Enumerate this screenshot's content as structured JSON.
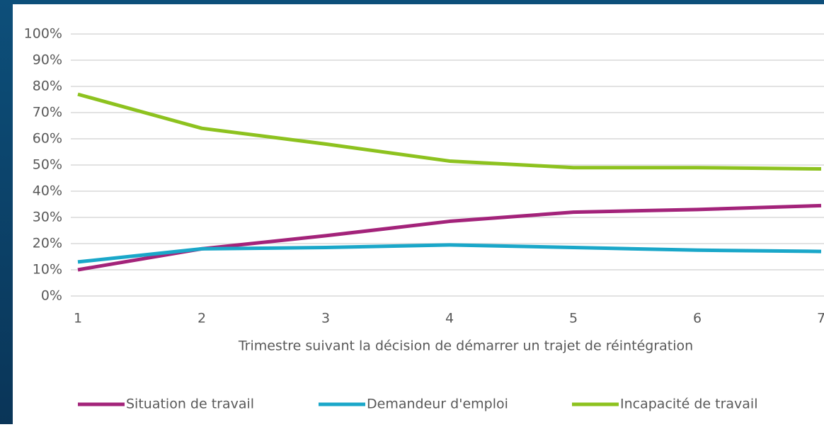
{
  "chart_data": {
    "type": "line",
    "x_label": "Trimestre suivant la décision de démarrer un trajet de réintégration",
    "categories": [
      "1",
      "2",
      "3",
      "4",
      "5",
      "6",
      "7"
    ],
    "series": [
      {
        "name": "Situation de travail",
        "color": "#a3237a",
        "values": [
          10,
          18,
          23,
          28.5,
          32,
          33,
          34.5
        ]
      },
      {
        "name": "Demandeur d'emploi",
        "color": "#1aa7c9",
        "values": [
          13,
          18,
          18.5,
          19.5,
          18.5,
          17.5,
          17
        ]
      },
      {
        "name": "Incapacité de travail",
        "color": "#8dc21f",
        "values": [
          77,
          64,
          58,
          51.5,
          49,
          49,
          48.5
        ]
      }
    ],
    "ylim": [
      0,
      100
    ],
    "yticks": [
      {
        "value": 0,
        "label": "0%"
      },
      {
        "value": 10,
        "label": "10%"
      },
      {
        "value": 20,
        "label": "20%"
      },
      {
        "value": 30,
        "label": "30%"
      },
      {
        "value": 40,
        "label": "40%"
      },
      {
        "value": 50,
        "label": "50%"
      },
      {
        "value": 60,
        "label": "60%"
      },
      {
        "value": 70,
        "label": "70%"
      },
      {
        "value": 80,
        "label": "80%"
      },
      {
        "value": 90,
        "label": "90%"
      },
      {
        "value": 100,
        "label": "100%"
      }
    ],
    "grid": true,
    "legend": "bottom"
  }
}
